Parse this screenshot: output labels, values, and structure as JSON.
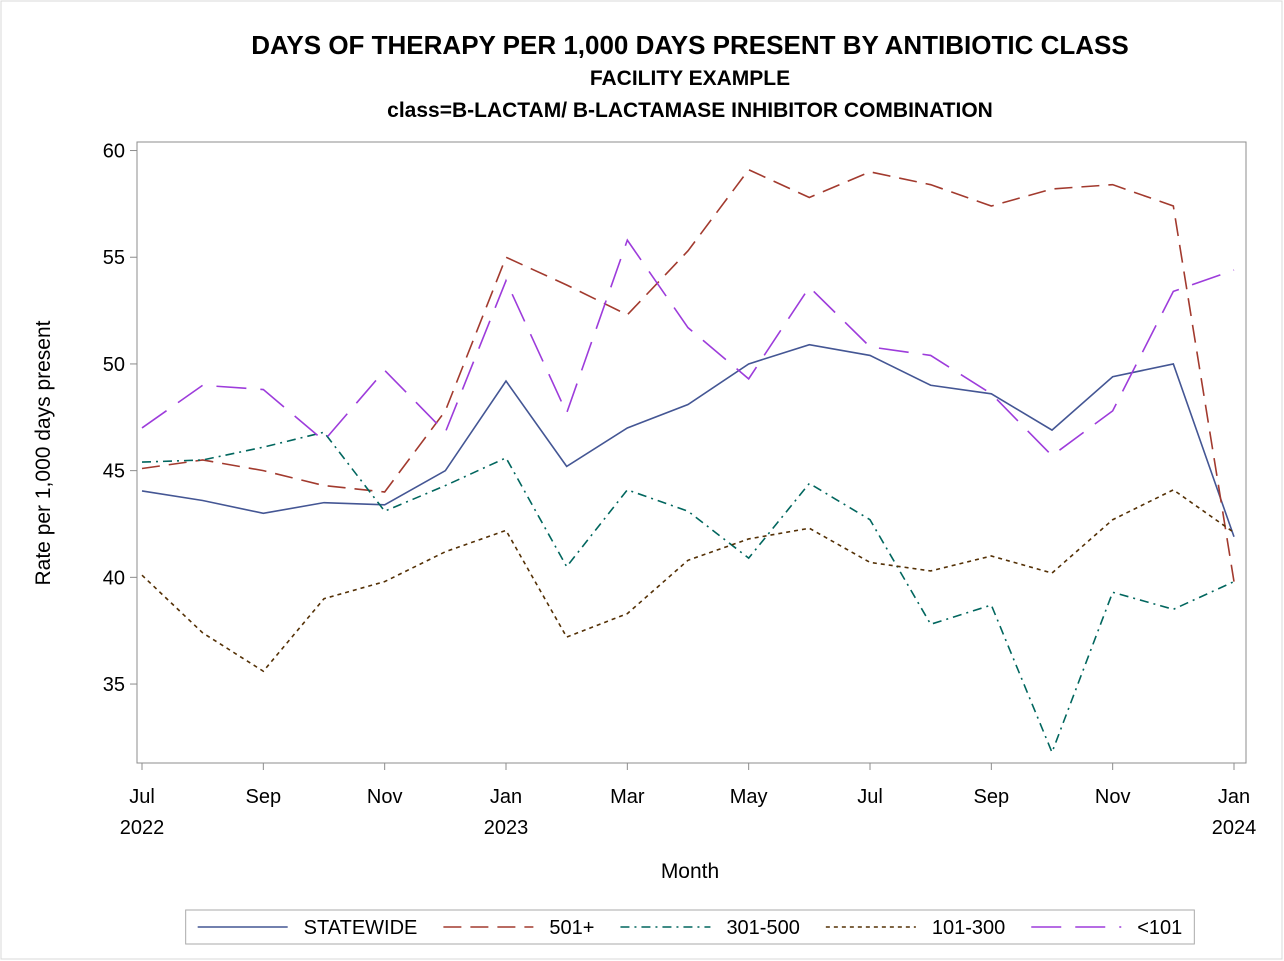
{
  "chart_data": {
    "type": "line",
    "title": "DAYS OF THERAPY PER 1,000 DAYS PRESENT BY ANTIBIOTIC CLASS",
    "subtitle": "FACILITY EXAMPLE",
    "subtitle2": "class=B-LACTAM/ B-LACTAMASE INHIBITOR COMBINATION",
    "x_label": "Month",
    "y_label": "Rate per 1,000 days present",
    "x": [
      "2022-07",
      "2022-08",
      "2022-09",
      "2022-10",
      "2022-11",
      "2022-12",
      "2023-01",
      "2023-02",
      "2023-03",
      "2023-04",
      "2023-05",
      "2023-06",
      "2023-07",
      "2023-08",
      "2023-09",
      "2023-10",
      "2023-11",
      "2023-12",
      "2024-01"
    ],
    "xticks": [
      {
        "value": "2022-07",
        "label": "Jul"
      },
      {
        "value": "2022-09",
        "label": "Sep"
      },
      {
        "value": "2022-11",
        "label": "Nov"
      },
      {
        "value": "2023-01",
        "label": "Jan"
      },
      {
        "value": "2023-03",
        "label": "Mar"
      },
      {
        "value": "2023-05",
        "label": "May"
      },
      {
        "value": "2023-07",
        "label": "Jul"
      },
      {
        "value": "2023-09",
        "label": "Sep"
      },
      {
        "value": "2023-11",
        "label": "Nov"
      },
      {
        "value": "2024-01",
        "label": "Jan"
      }
    ],
    "xtick_years": [
      {
        "value": "2022-07",
        "label": "2022"
      },
      {
        "value": "2023-01",
        "label": "2023"
      },
      {
        "value": "2024-01",
        "label": "2024"
      }
    ],
    "ylim": [
      31.3,
      60.4
    ],
    "yticks": [
      35,
      40,
      45,
      50,
      55,
      60
    ],
    "legend": "bottom",
    "series": [
      {
        "name": "STATEWIDE",
        "color": "#445694",
        "dash": "none",
        "values": [
          44.05,
          43.6,
          43.0,
          43.5,
          43.4,
          45.0,
          49.2,
          45.2,
          47.0,
          48.1,
          50.0,
          50.9,
          50.4,
          49.0,
          48.6,
          46.9,
          49.4,
          50.0,
          41.9
        ]
      },
      {
        "name": "501+",
        "color": "#A23A2E",
        "dash": "18 9",
        "values": [
          45.1,
          45.5,
          45.0,
          44.3,
          44.0,
          47.8,
          55.0,
          53.7,
          52.3,
          55.3,
          59.1,
          57.8,
          59.0,
          58.4,
          57.4,
          58.2,
          58.4,
          57.4,
          39.8
        ]
      },
      {
        "name": "301-500",
        "color": "#01665E",
        "dash": "9 5 2 5",
        "values": [
          45.4,
          45.5,
          46.1,
          46.8,
          43.1,
          44.3,
          45.6,
          40.5,
          44.1,
          43.1,
          40.9,
          44.4,
          42.7,
          37.8,
          38.7,
          31.8,
          39.3,
          38.5,
          39.8
        ]
      },
      {
        "name": "101-300",
        "color": "#543005",
        "dash": "4 4",
        "values": [
          40.1,
          37.4,
          35.6,
          39.0,
          39.8,
          41.2,
          42.2,
          37.2,
          38.3,
          40.8,
          41.8,
          42.3,
          40.7,
          40.3,
          41.0,
          40.2,
          42.7,
          44.1,
          42.1
        ]
      },
      {
        "name": "<101",
        "color": "#9D3CDB",
        "dash": "30 14",
        "values": [
          47.0,
          49.0,
          48.8,
          46.4,
          49.7,
          46.8,
          53.9,
          47.7,
          55.8,
          51.7,
          49.3,
          53.6,
          50.8,
          50.4,
          48.6,
          45.7,
          47.8,
          53.4,
          54.4
        ]
      }
    ]
  }
}
